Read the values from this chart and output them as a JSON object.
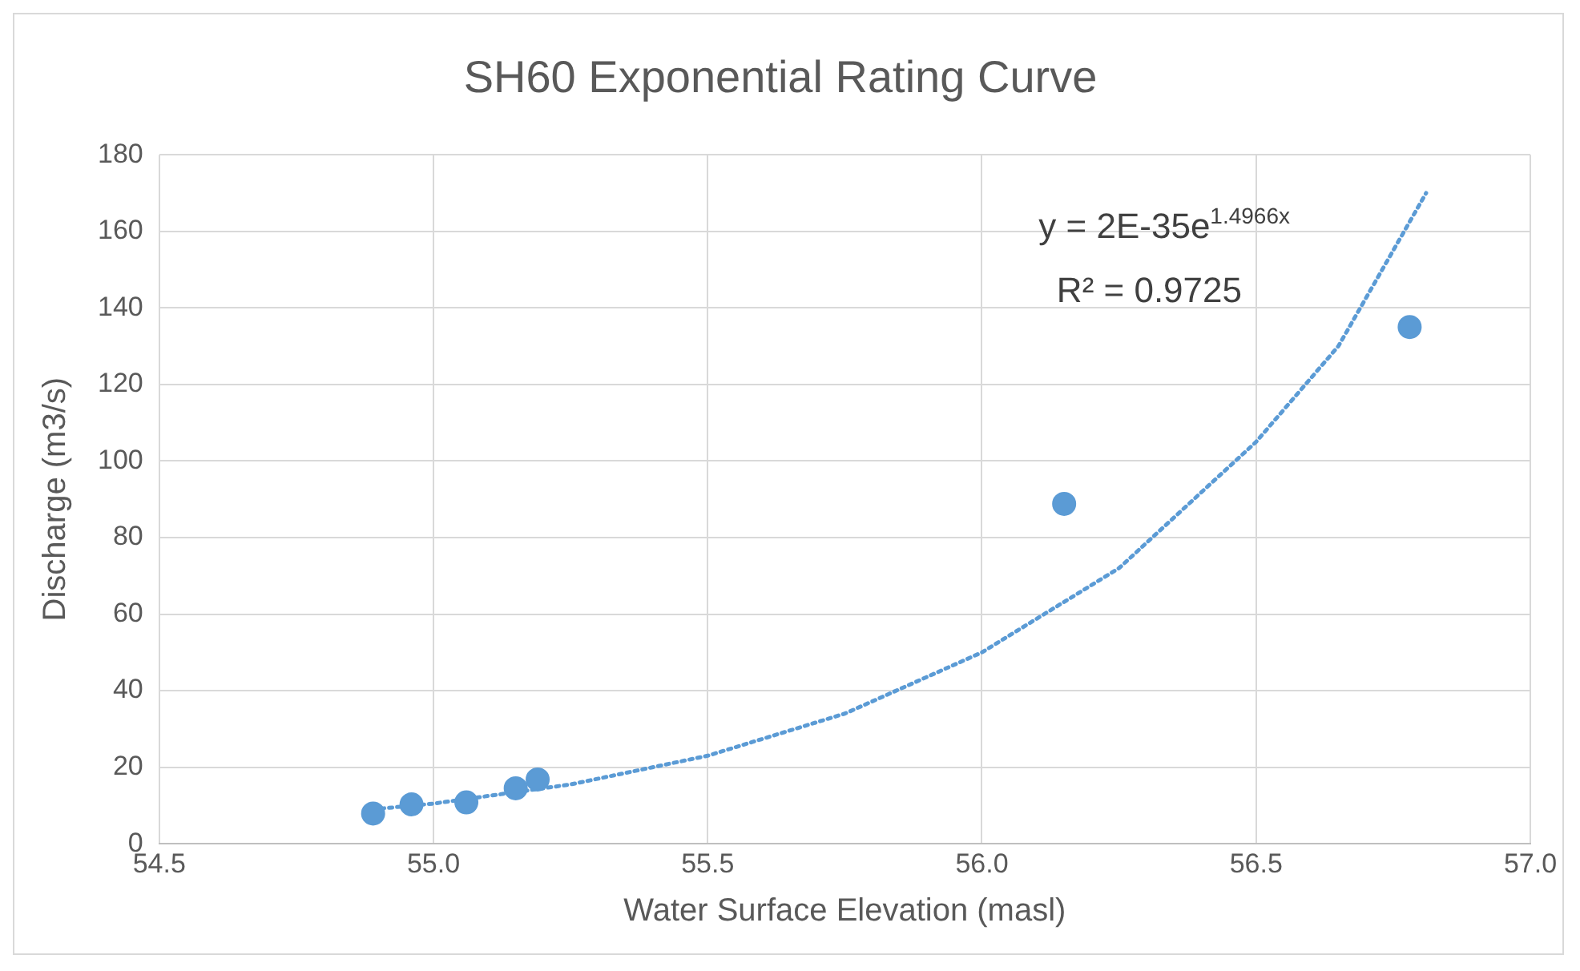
{
  "chart_data": {
    "type": "scatter",
    "title": "SH60 Exponential Rating Curve",
    "xlabel": "Water Surface Elevation (masl)",
    "ylabel": "Discharge (m3/s)",
    "xlim": [
      54.5,
      57.0
    ],
    "xticks": [
      {
        "value": 54.5,
        "label": "54.5"
      },
      {
        "value": 55,
        "label": "55.0"
      },
      {
        "value": 55.5,
        "label": "55.5"
      },
      {
        "value": 56,
        "label": "56.0"
      },
      {
        "value": 56.5,
        "label": "56.5"
      },
      {
        "value": 57,
        "label": "57.0"
      }
    ],
    "ylim": [
      0,
      180
    ],
    "yticks": [
      0,
      20,
      40,
      60,
      80,
      100,
      120,
      140,
      160,
      180
    ],
    "grid": true,
    "legend": false,
    "annotations": [
      "y = 2E-35e$^{1.4966x}$",
      "R² = 0.9725"
    ],
    "series": [
      {
        "type": "scatter",
        "color": "#5b9bd5",
        "marker": "circle",
        "x": [
          54.89,
          54.96,
          55.06,
          55.15,
          55.19,
          56.15,
          56.78
        ],
        "values": [
          7.9,
          10.3,
          10.8,
          14.5,
          16.8,
          88.8,
          135
        ]
      },
      {
        "type": "line",
        "color": "#5b9bd5",
        "marker": "none",
        "line_style": "dotted",
        "x": [
          54.89,
          55.0,
          55.25,
          55.5,
          55.75,
          56.0,
          56.25,
          56.5,
          56.65,
          56.81
        ],
        "values": [
          9,
          10.5,
          15.5,
          23,
          34,
          50,
          72,
          105,
          130,
          170
        ]
      }
    ]
  }
}
